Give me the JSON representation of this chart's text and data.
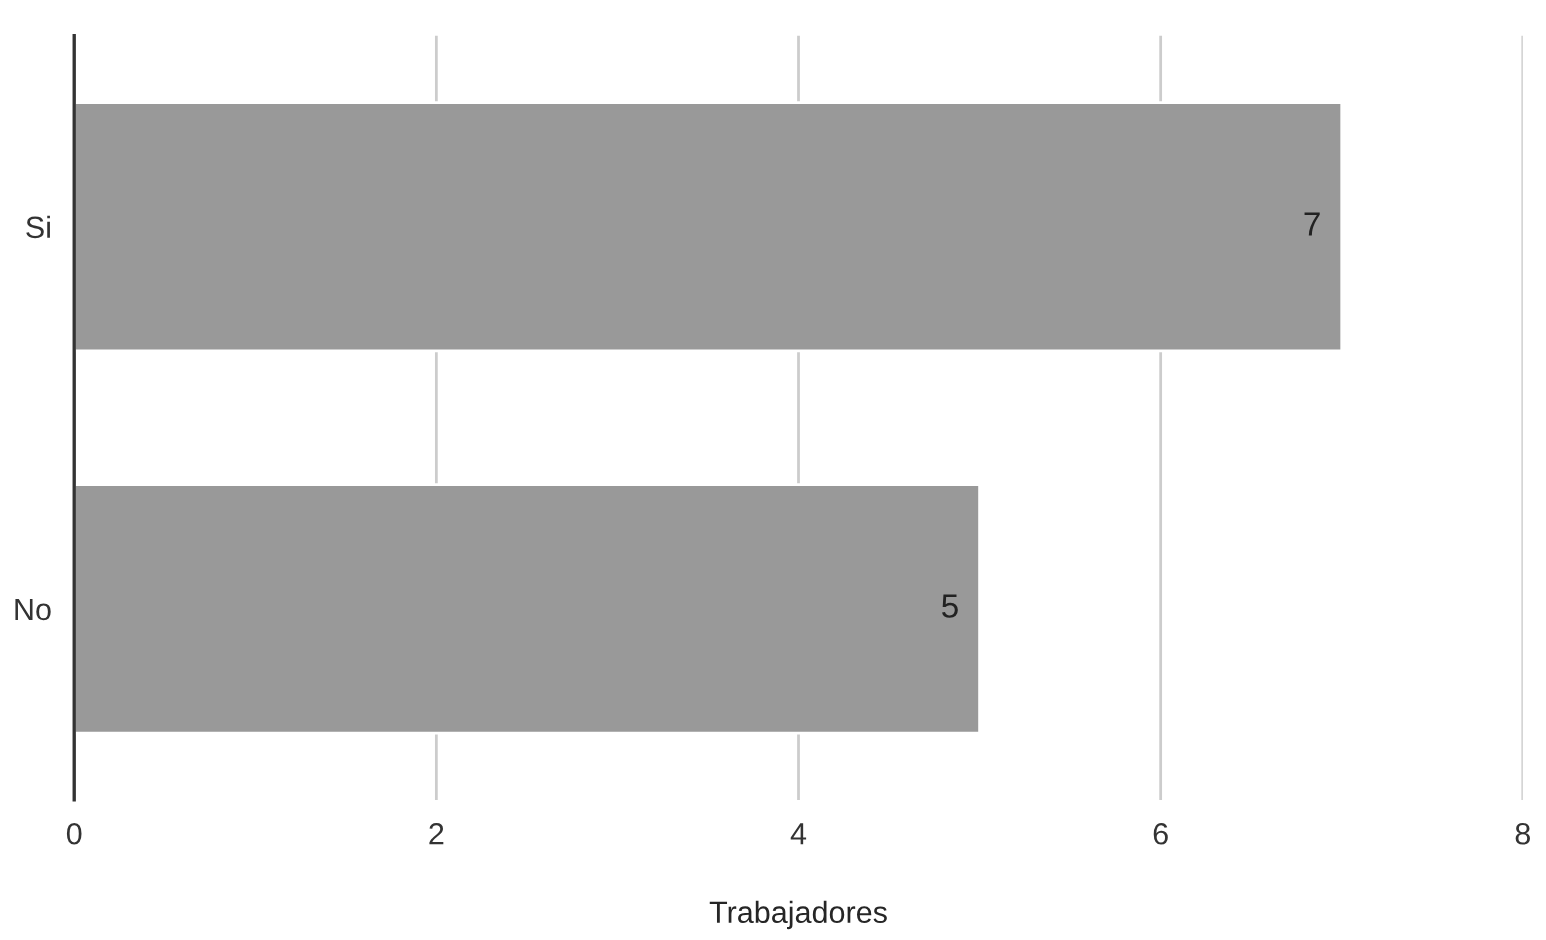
{
  "chart_data": {
    "type": "bar",
    "orientation": "horizontal",
    "xlabel": "Trabajadores",
    "categories": [
      "Si",
      "No"
    ],
    "values": [
      7,
      5
    ],
    "color": "#999999",
    "xlim": [
      0,
      8
    ],
    "xticks": [
      0,
      2,
      4,
      6,
      8
    ],
    "grid": "x",
    "data_labels": true
  }
}
